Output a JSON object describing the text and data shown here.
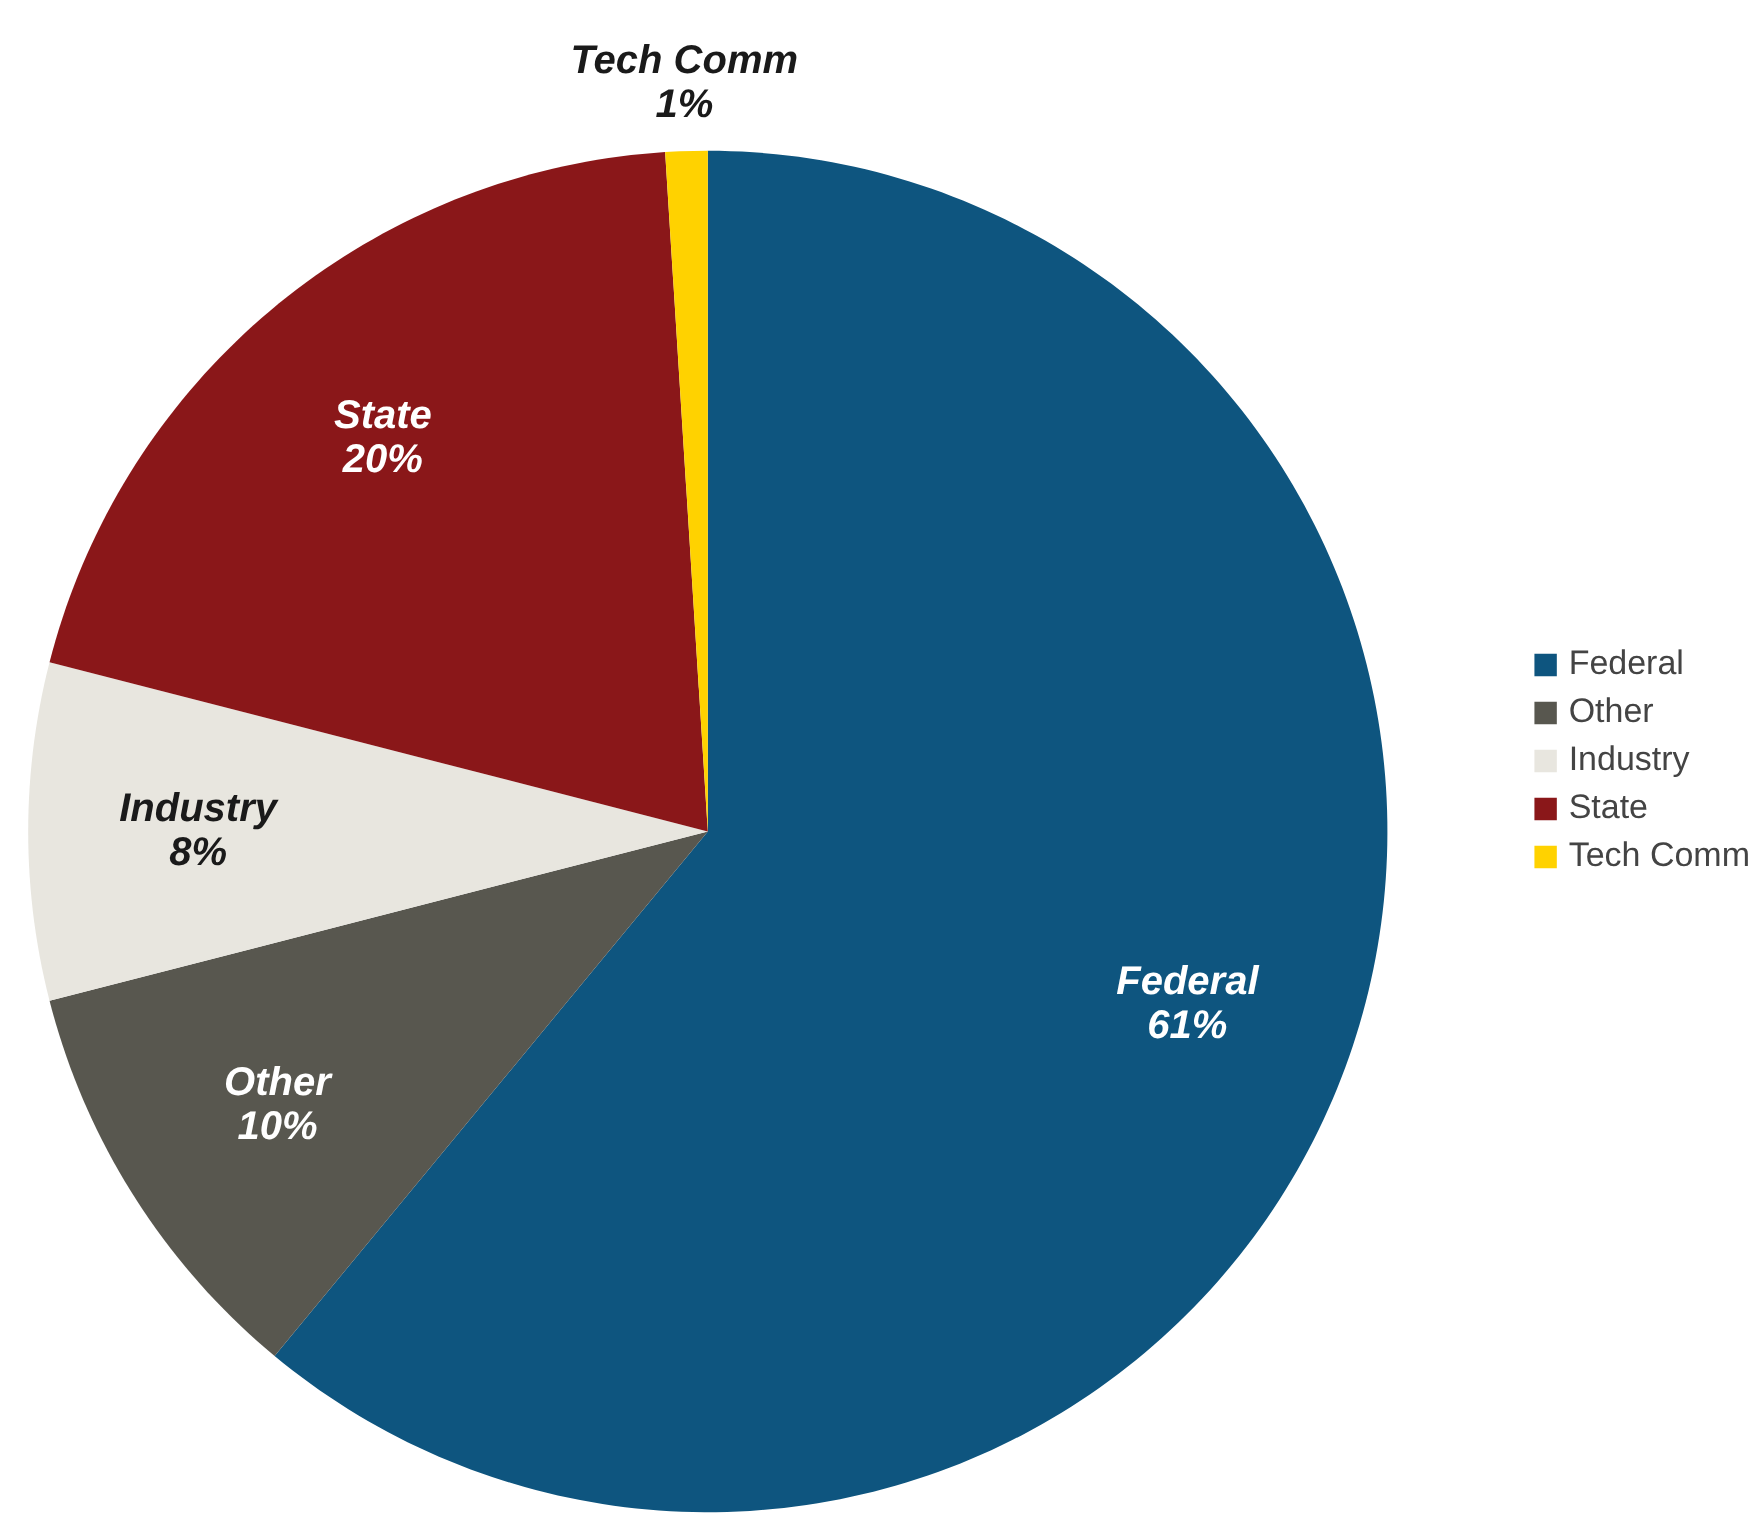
{
  "chart_data": {
    "type": "pie",
    "categories": [
      "Federal",
      "Other",
      "Industry",
      "State",
      "Tech Comm"
    ],
    "values": [
      61,
      10,
      8,
      20,
      1
    ],
    "colors": [
      "#0e557f",
      "#58574f",
      "#e8e6df",
      "#8a1719",
      "#ffd200"
    ],
    "value_labels": [
      "61%",
      "10%",
      "8%",
      "20%",
      "1%"
    ],
    "legend": "right"
  }
}
